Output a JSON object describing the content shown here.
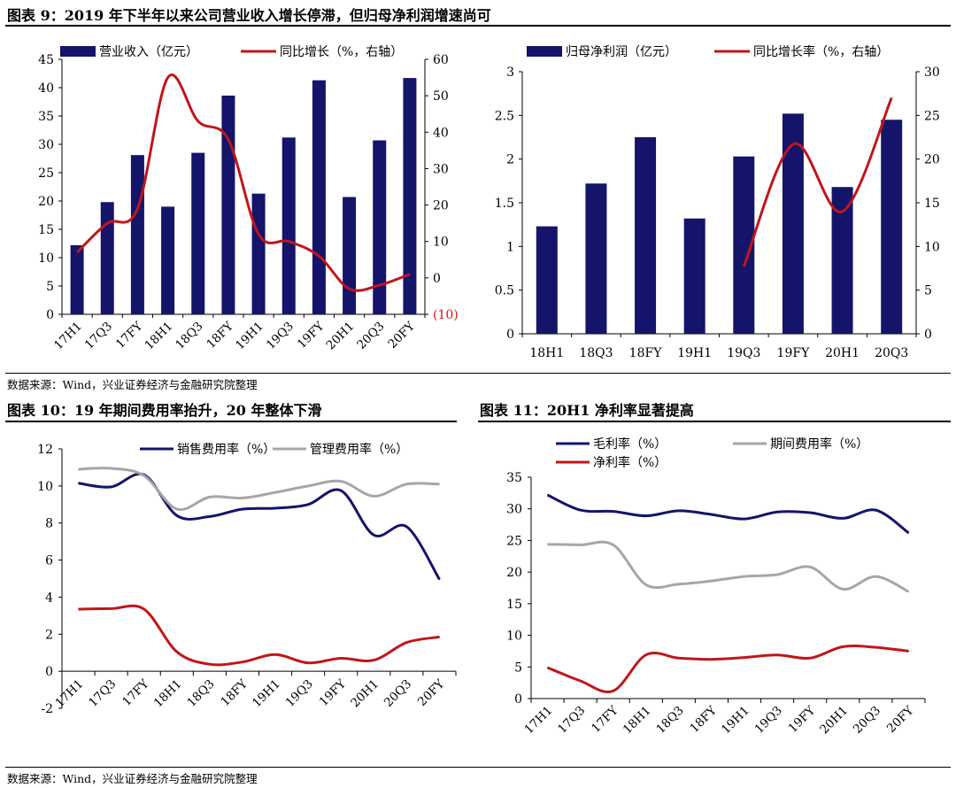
{
  "titles": {
    "fig9": "图表 9：2019 年下半年以来公司营业收入增长停滞，但归母净利润增速尚可",
    "fig10": "图表 10：19 年期间费用率抬升，20 年整体下滑",
    "fig11": "图表 11：20H1 净利率显著提高"
  },
  "sources": {
    "top": "数据来源：Wind，兴业证券经济与金融研究院整理",
    "bottom": "数据来源：Wind，兴业证券经济与金融研究院整理"
  },
  "colors": {
    "navy": "#14146b",
    "red": "#c0161a",
    "gray": "#a6a6a6",
    "neg_label": "#e01010"
  },
  "chart_data": [
    {
      "id": "fig9",
      "type": "bar+line",
      "categories": [
        "17H1",
        "17Q3",
        "17FY",
        "18H1",
        "18Q3",
        "18FY",
        "19H1",
        "19Q3",
        "19FY",
        "20H1",
        "20Q3",
        "20FY"
      ],
      "series": [
        {
          "name": "营业收入（亿元）",
          "type": "bar",
          "axis": "left",
          "values": [
            12.2,
            19.8,
            28.1,
            19.0,
            28.5,
            38.6,
            21.3,
            31.2,
            41.3,
            20.7,
            30.7,
            41.7
          ]
        },
        {
          "name": "同比增长（%，右轴）",
          "type": "line",
          "axis": "right",
          "values": [
            7,
            15,
            19,
            55,
            43,
            38,
            12,
            10,
            6,
            -3,
            -2,
            1
          ]
        }
      ],
      "ylim": [
        0,
        45
      ],
      "yticks": [
        0,
        5,
        10,
        15,
        20,
        25,
        30,
        35,
        40,
        45
      ],
      "y2lim": [
        -10,
        60
      ],
      "y2ticks": [
        {
          "v": -10,
          "label": "(10)"
        },
        {
          "v": 0,
          "label": "0"
        },
        {
          "v": 10,
          "label": "10"
        },
        {
          "v": 20,
          "label": "20"
        },
        {
          "v": 30,
          "label": "30"
        },
        {
          "v": 40,
          "label": "40"
        },
        {
          "v": 50,
          "label": "50"
        },
        {
          "v": 60,
          "label": "60"
        }
      ],
      "legend": "top"
    },
    {
      "id": "fig9b",
      "type": "bar+line",
      "categories": [
        "18H1",
        "18Q3",
        "18FY",
        "19H1",
        "19Q3",
        "19FY",
        "20H1",
        "20Q3"
      ],
      "series": [
        {
          "name": "归母净利润（亿元）",
          "type": "bar",
          "axis": "left",
          "values": [
            1.23,
            1.72,
            2.25,
            1.32,
            2.03,
            2.52,
            1.68,
            2.45
          ]
        },
        {
          "name": "同比增长率（%，右轴）",
          "type": "line",
          "axis": "right",
          "values": [
            null,
            null,
            null,
            null,
            7.7,
            21.7,
            14,
            27
          ]
        }
      ],
      "ylim": [
        0,
        3
      ],
      "yticks": [
        0,
        0.5,
        1,
        1.5,
        2,
        2.5,
        3
      ],
      "y2lim": [
        0,
        30
      ],
      "y2ticks": [
        0,
        5,
        10,
        15,
        20,
        25,
        30
      ],
      "legend": "top"
    },
    {
      "id": "fig10",
      "type": "line",
      "categories": [
        "17H1",
        "17Q3",
        "17FY",
        "18H1",
        "18Q3",
        "18FY",
        "19H1",
        "19Q3",
        "19FY",
        "20H1",
        "20Q3",
        "20FY"
      ],
      "series": [
        {
          "name": "销售费用率（%）",
          "values": [
            10.15,
            9.95,
            10.6,
            8.4,
            8.35,
            8.75,
            8.8,
            9.0,
            9.75,
            7.35,
            7.8,
            4.95
          ]
        },
        {
          "name": "管理费用率（%）",
          "values": [
            10.9,
            10.95,
            10.55,
            8.75,
            9.4,
            9.35,
            9.65,
            10.0,
            10.25,
            9.45,
            10.1,
            10.1
          ]
        },
        {
          "name": "",
          "values": [
            3.35,
            3.38,
            3.35,
            1.05,
            0.38,
            0.5,
            0.9,
            0.45,
            0.7,
            0.6,
            1.55,
            1.85
          ]
        }
      ],
      "ylim": [
        -2,
        12
      ],
      "yticks": [
        -2,
        0,
        2,
        4,
        6,
        8,
        10,
        12
      ],
      "legend": "top"
    },
    {
      "id": "fig11",
      "type": "line",
      "categories": [
        "17H1",
        "17Q3",
        "17FY",
        "18H1",
        "18Q3",
        "18FY",
        "19H1",
        "19Q3",
        "19FY",
        "20H1",
        "20Q3",
        "20FY"
      ],
      "series": [
        {
          "name": "毛利率（%）",
          "values": [
            32.2,
            29.8,
            29.6,
            28.9,
            29.7,
            29.1,
            28.4,
            29.5,
            29.4,
            28.5,
            29.8,
            26.2
          ]
        },
        {
          "name": "期间费用率（%）",
          "values": [
            24.4,
            24.3,
            24.3,
            18.0,
            18.1,
            18.6,
            19.3,
            19.6,
            20.8,
            17.3,
            19.3,
            16.9
          ]
        },
        {
          "name": "净利率（%）",
          "values": [
            4.9,
            2.8,
            1.2,
            6.9,
            6.4,
            6.2,
            6.5,
            6.9,
            6.4,
            8.2,
            8.1,
            7.5
          ]
        }
      ],
      "ylim": [
        0,
        35
      ],
      "yticks": [
        0,
        5,
        10,
        15,
        20,
        25,
        30,
        35
      ],
      "legend": "top"
    }
  ]
}
